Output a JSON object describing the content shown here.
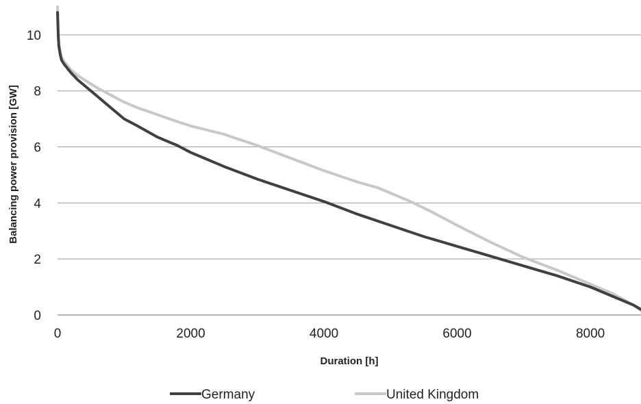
{
  "chart_data": {
    "type": "line",
    "xlabel": "Duration [h]",
    "ylabel": "Balancing power provision [GW]",
    "xlim": [
      0,
      8760
    ],
    "ylim": [
      0,
      11
    ],
    "x_ticks": [
      "0",
      "2000",
      "4000",
      "6000",
      "8000"
    ],
    "y_ticks": [
      "0",
      "2",
      "4",
      "6",
      "8",
      "10"
    ],
    "grid": "horizontal",
    "legend_position": "bottom",
    "series": [
      {
        "name": "Germany",
        "color": "#404040",
        "x": [
          0,
          10,
          20,
          40,
          60,
          100,
          150,
          200,
          300,
          400,
          500,
          600,
          800,
          1000,
          1200,
          1500,
          1800,
          2000,
          2200,
          2500,
          3000,
          3500,
          4000,
          4500,
          5000,
          5500,
          6000,
          6500,
          7000,
          7500,
          8000,
          8300,
          8500,
          8650,
          8760
        ],
        "y": [
          10.8,
          10.0,
          9.6,
          9.3,
          9.1,
          8.95,
          8.8,
          8.65,
          8.4,
          8.2,
          8.0,
          7.8,
          7.4,
          7.0,
          6.75,
          6.35,
          6.05,
          5.8,
          5.6,
          5.3,
          4.85,
          4.45,
          4.05,
          3.6,
          3.2,
          2.8,
          2.45,
          2.1,
          1.75,
          1.4,
          1.0,
          0.7,
          0.5,
          0.35,
          0.2
        ]
      },
      {
        "name": "United Kingdom",
        "color": "#c8c8c8",
        "x": [
          0,
          10,
          20,
          40,
          60,
          100,
          150,
          200,
          300,
          400,
          500,
          600,
          800,
          1000,
          1200,
          1500,
          1800,
          2000,
          2500,
          3000,
          3500,
          4000,
          4500,
          4800,
          5000,
          5300,
          5600,
          6000,
          6500,
          7000,
          7500,
          8000,
          8300,
          8500,
          8650,
          8760
        ],
        "y": [
          11.0,
          10.2,
          9.7,
          9.4,
          9.2,
          9.05,
          8.9,
          8.75,
          8.55,
          8.4,
          8.25,
          8.1,
          7.85,
          7.6,
          7.4,
          7.15,
          6.9,
          6.75,
          6.45,
          6.05,
          5.6,
          5.15,
          4.75,
          4.55,
          4.35,
          4.05,
          3.7,
          3.2,
          2.6,
          2.05,
          1.6,
          1.1,
          0.8,
          0.55,
          0.35,
          0.15
        ]
      }
    ]
  }
}
